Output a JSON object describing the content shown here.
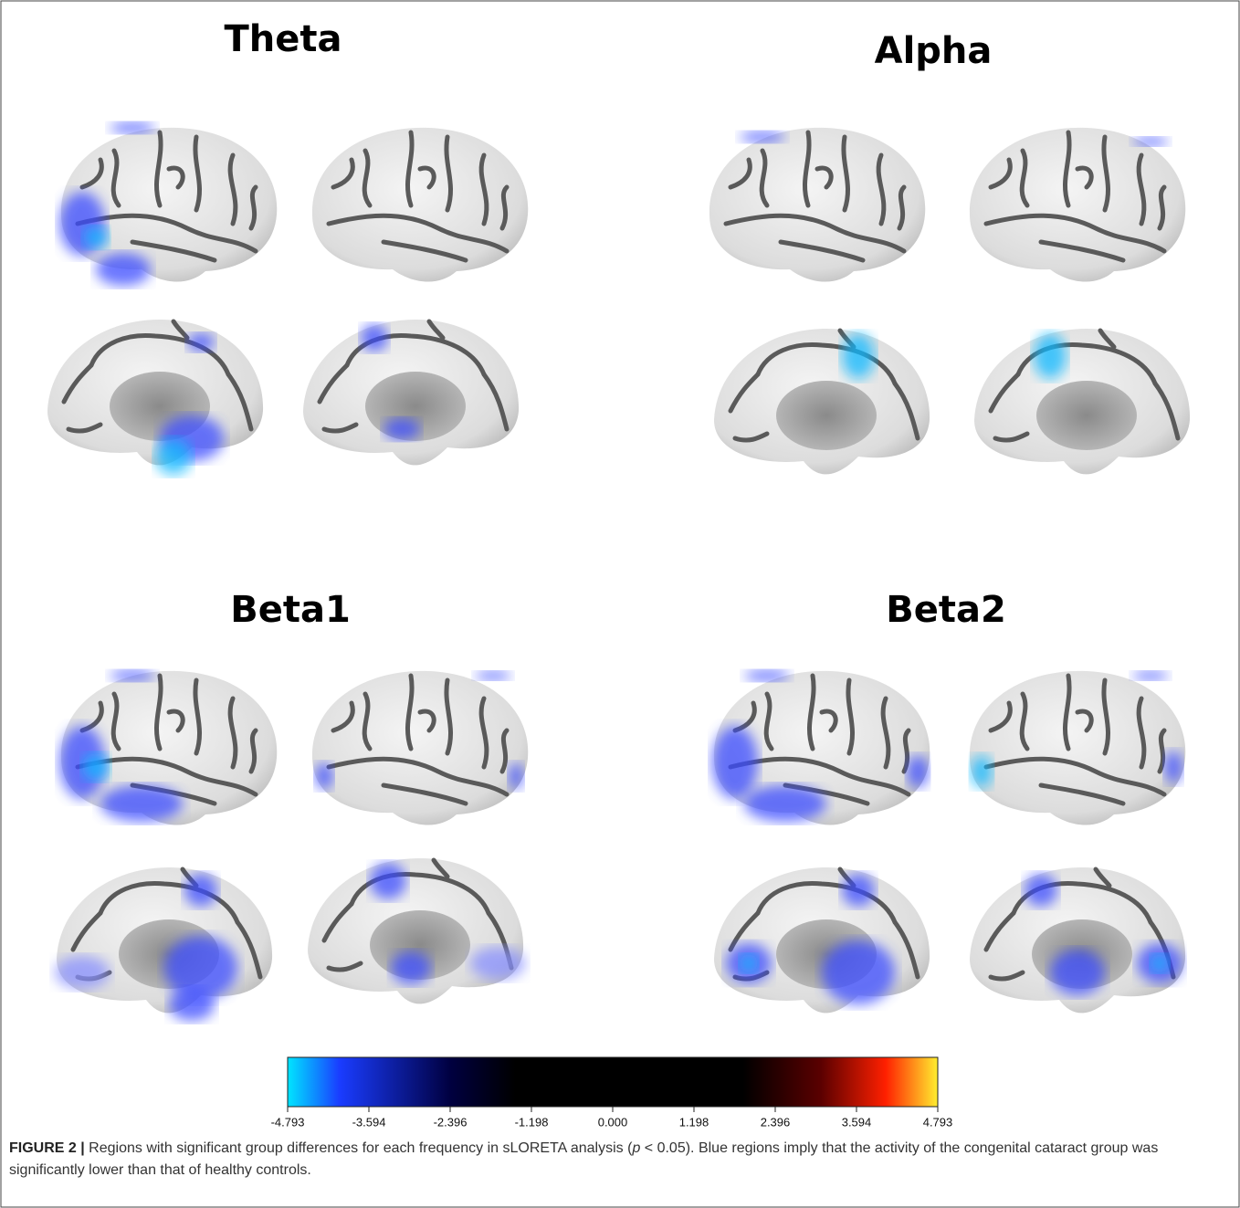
{
  "panels": [
    {
      "title": "Theta"
    },
    {
      "title": "Alpha"
    },
    {
      "title": "Beta1"
    },
    {
      "title": "Beta2"
    }
  ],
  "colorbar": {
    "ticks": [
      "-4.793",
      "-3.594",
      "-2.396",
      "-1.198",
      "0.000",
      "1.198",
      "2.396",
      "3.594",
      "4.793"
    ]
  },
  "caption": {
    "label": "FIGURE 2 |",
    "text_before": "Regions with significant group differences for each frequency in sLORETA analysis (",
    "italic": "p",
    "text_after": " < 0.05). Blue regions imply that the activity of the congenital cataract group was significantly lower than that of healthy controls."
  }
}
